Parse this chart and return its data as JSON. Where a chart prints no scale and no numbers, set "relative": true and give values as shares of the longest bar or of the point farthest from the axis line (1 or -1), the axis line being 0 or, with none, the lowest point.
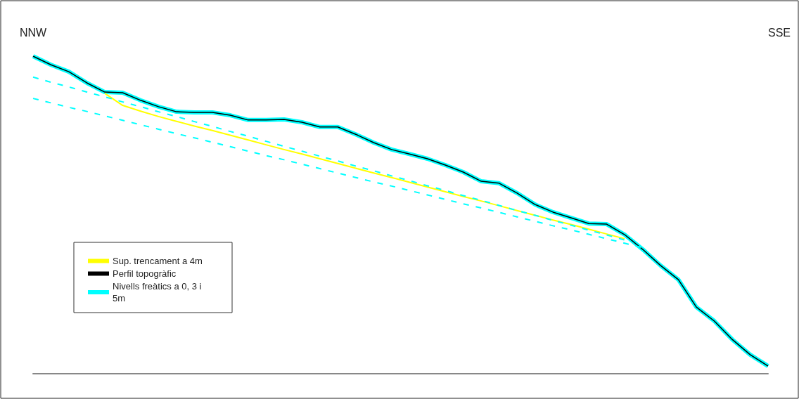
{
  "chart_data": {
    "type": "line",
    "relative": true,
    "marker": "none",
    "grid": false,
    "legend": "bottom left",
    "annotations": [
      "NNW",
      "SSE"
    ],
    "categories": [
      null,
      null,
      null,
      null,
      null,
      null,
      null,
      null,
      null,
      null,
      null,
      null,
      null,
      null,
      null,
      null,
      null,
      null,
      null,
      null,
      null,
      null,
      null,
      null,
      null,
      null,
      null,
      null,
      null,
      null,
      null,
      null,
      null,
      null,
      null,
      null,
      null,
      null,
      null,
      null,
      null,
      null
    ],
    "series": [
      {
        "name": "Sup. trencament a 4m",
        "color": "#ffff00",
        "values": [
          null,
          null,
          null,
          null,
          0.883,
          0.845,
          0.827,
          0.81,
          0.795,
          0.78,
          0.766,
          0.751,
          0.736,
          0.721,
          0.706,
          0.692,
          0.677,
          0.662,
          0.647,
          0.632,
          0.618,
          0.603,
          0.588,
          0.573,
          0.558,
          0.544,
          0.529,
          0.514,
          0.499,
          0.484,
          0.47,
          0.455,
          0.44,
          0.425,
          null,
          null,
          null,
          null,
          null,
          null,
          null,
          null
        ]
      },
      {
        "name": "Perfil topogràfic",
        "color": "#000000",
        "values": [
          1.0,
          0.973,
          0.951,
          0.916,
          0.887,
          0.885,
          0.861,
          0.841,
          0.825,
          0.823,
          0.823,
          0.814,
          0.799,
          0.799,
          0.801,
          0.792,
          0.777,
          0.777,
          0.754,
          0.728,
          0.706,
          0.692,
          0.677,
          0.657,
          0.635,
          0.606,
          0.6,
          0.569,
          0.533,
          0.509,
          0.491,
          0.473,
          0.471,
          0.438,
          0.392,
          0.341,
          0.296,
          0.21,
          0.166,
          0.108,
          0.06,
          0.024
        ]
      },
      {
        "name": "Nivells freàtics a 0, 3 i 5m",
        "color": "#00ffff",
        "values": [
          1.0,
          0.973,
          0.951,
          0.916,
          0.887,
          0.885,
          0.861,
          0.841,
          0.825,
          0.823,
          0.823,
          0.814,
          0.799,
          0.799,
          0.801,
          0.792,
          0.777,
          0.777,
          0.754,
          0.728,
          0.706,
          0.692,
          0.677,
          0.657,
          0.635,
          0.606,
          0.6,
          0.569,
          0.533,
          0.509,
          0.491,
          0.473,
          0.471,
          0.438,
          0.392,
          0.341,
          0.296,
          0.21,
          0.166,
          0.108,
          0.06,
          0.024
        ]
      },
      {
        "color": "#00ffff",
        "line_style": "dashed",
        "values": [
          0.934,
          0.918,
          0.903,
          0.887,
          0.872,
          0.856,
          0.841,
          0.825,
          0.81,
          0.794,
          0.779,
          0.763,
          0.748,
          0.732,
          0.716,
          0.701,
          0.685,
          0.67,
          0.654,
          0.639,
          0.623,
          0.608,
          0.592,
          0.577,
          0.561,
          0.546,
          0.53,
          0.514,
          0.499,
          0.483,
          0.468,
          0.452,
          0.437,
          0.421,
          null,
          null,
          null,
          null,
          null,
          null,
          null,
          null
        ]
      },
      {
        "color": "#00ffff",
        "line_style": "dashed",
        "values": [
          0.867,
          0.853,
          0.839,
          0.826,
          0.812,
          0.798,
          0.784,
          0.77,
          0.756,
          0.743,
          0.729,
          0.715,
          0.701,
          0.687,
          0.674,
          0.66,
          0.646,
          0.632,
          0.618,
          0.604,
          0.591,
          0.577,
          0.563,
          0.549,
          0.535,
          0.522,
          0.508,
          0.494,
          0.48,
          0.466,
          0.453,
          0.439,
          0.425,
          0.411,
          0.397,
          null,
          null,
          null,
          null,
          null,
          null,
          null
        ]
      }
    ]
  }
}
